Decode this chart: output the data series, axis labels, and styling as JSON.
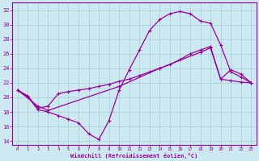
{
  "xlabel": "Windchill (Refroidissement éolien,°C)",
  "xlim": [
    -0.5,
    23.5
  ],
  "ylim": [
    13.5,
    33
  ],
  "xticks": [
    0,
    1,
    2,
    3,
    4,
    5,
    6,
    7,
    8,
    9,
    10,
    11,
    12,
    13,
    14,
    15,
    16,
    17,
    18,
    19,
    20,
    21,
    22,
    23
  ],
  "yticks": [
    14,
    16,
    18,
    20,
    22,
    24,
    26,
    28,
    30,
    32
  ],
  "background_color": "#cce8f0",
  "grid_color": "#a8ccd8",
  "line_color": "#990099",
  "curve1_x": [
    0,
    1,
    2,
    3,
    4,
    5,
    6,
    7,
    8,
    9,
    10,
    11,
    12,
    13,
    14,
    15,
    16,
    17,
    18,
    19,
    20,
    21,
    22,
    23
  ],
  "curve1_y": [
    21.0,
    20.2,
    18.5,
    18.8,
    20.5,
    20.8,
    21.0,
    21.2,
    21.5,
    21.8,
    22.2,
    22.5,
    23.0,
    23.5,
    24.0,
    24.5,
    25.2,
    26.0,
    26.5,
    27.0,
    22.5,
    22.3,
    22.1,
    22.0
  ],
  "curve2_x": [
    0,
    1,
    2,
    3,
    4,
    5,
    6,
    7,
    8,
    9,
    10,
    11,
    12,
    13,
    14,
    15,
    16,
    17,
    18,
    19,
    20,
    21,
    22,
    23
  ],
  "curve2_y": [
    21.0,
    20.1,
    18.3,
    18.0,
    17.5,
    17.0,
    16.5,
    15.0,
    14.2,
    16.8,
    21.0,
    23.8,
    26.5,
    29.2,
    30.7,
    31.5,
    31.8,
    31.5,
    30.5,
    30.2,
    27.2,
    23.5,
    22.8,
    22.0
  ],
  "curve3_x": [
    0,
    2,
    3,
    10,
    14,
    18,
    19,
    20,
    21,
    22,
    23
  ],
  "curve3_y": [
    21.0,
    18.8,
    18.2,
    21.5,
    24.0,
    26.2,
    26.8,
    22.5,
    23.8,
    23.2,
    22.0
  ]
}
